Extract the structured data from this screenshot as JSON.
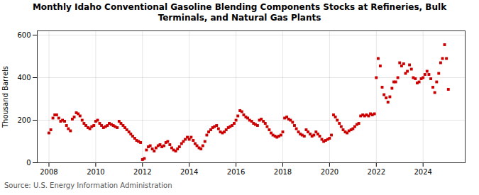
{
  "chart_data": {
    "type": "scatter",
    "title": "Monthly Idaho Conventional Gasoline Blending Components Stocks at Refineries, Bulk\nTerminals, and Natural Gas Plants",
    "ylabel": "Thousand Barrels",
    "source": "Source: U.S. Energy Information Administration",
    "color": "#cc0000",
    "marker": "square",
    "grid": true,
    "xlim": [
      2007.5,
      2025.8
    ],
    "ylim": [
      0,
      620
    ],
    "yticks": [
      0,
      200,
      400,
      600
    ],
    "xticks": [
      2008,
      2010,
      2012,
      2014,
      2016,
      2018,
      2020,
      2022,
      2024
    ],
    "x": [
      2008.0,
      2008.08,
      2008.17,
      2008.25,
      2008.33,
      2008.42,
      2008.5,
      2008.58,
      2008.67,
      2008.75,
      2008.83,
      2008.92,
      2009.0,
      2009.08,
      2009.17,
      2009.25,
      2009.33,
      2009.42,
      2009.5,
      2009.58,
      2009.67,
      2009.75,
      2009.83,
      2009.92,
      2010.0,
      2010.08,
      2010.17,
      2010.25,
      2010.33,
      2010.42,
      2010.5,
      2010.58,
      2010.67,
      2010.75,
      2010.83,
      2010.92,
      2011.0,
      2011.08,
      2011.17,
      2011.25,
      2011.33,
      2011.42,
      2011.5,
      2011.58,
      2011.67,
      2011.75,
      2011.83,
      2011.92,
      2012.0,
      2012.08,
      2012.17,
      2012.25,
      2012.33,
      2012.42,
      2012.5,
      2012.58,
      2012.67,
      2012.75,
      2012.83,
      2012.92,
      2013.0,
      2013.08,
      2013.17,
      2013.25,
      2013.33,
      2013.42,
      2013.5,
      2013.58,
      2013.67,
      2013.75,
      2013.83,
      2013.92,
      2014.0,
      2014.08,
      2014.17,
      2014.25,
      2014.33,
      2014.42,
      2014.5,
      2014.58,
      2014.67,
      2014.75,
      2014.83,
      2014.92,
      2015.0,
      2015.08,
      2015.17,
      2015.25,
      2015.33,
      2015.42,
      2015.5,
      2015.58,
      2015.67,
      2015.75,
      2015.83,
      2015.92,
      2016.0,
      2016.08,
      2016.17,
      2016.25,
      2016.33,
      2016.42,
      2016.5,
      2016.58,
      2016.67,
      2016.75,
      2016.83,
      2016.92,
      2017.0,
      2017.08,
      2017.17,
      2017.25,
      2017.33,
      2017.42,
      2017.5,
      2017.58,
      2017.67,
      2017.75,
      2017.83,
      2017.92,
      2018.0,
      2018.08,
      2018.17,
      2018.25,
      2018.33,
      2018.42,
      2018.5,
      2018.58,
      2018.67,
      2018.75,
      2018.83,
      2018.92,
      2019.0,
      2019.08,
      2019.17,
      2019.25,
      2019.33,
      2019.42,
      2019.5,
      2019.58,
      2019.67,
      2019.75,
      2019.83,
      2019.92,
      2020.0,
      2020.08,
      2020.17,
      2020.25,
      2020.33,
      2020.42,
      2020.5,
      2020.58,
      2020.67,
      2020.75,
      2020.83,
      2020.92,
      2021.0,
      2021.08,
      2021.17,
      2021.25,
      2021.33,
      2021.42,
      2021.5,
      2021.58,
      2021.67,
      2021.75,
      2021.83,
      2021.92,
      2022.0,
      2022.08,
      2022.17,
      2022.25,
      2022.33,
      2022.42,
      2022.5,
      2022.58,
      2022.67,
      2022.75,
      2022.83,
      2022.92,
      2023.0,
      2023.08,
      2023.17,
      2023.25,
      2023.33,
      2023.42,
      2023.5,
      2023.58,
      2023.67,
      2023.75,
      2023.83,
      2023.92,
      2024.0,
      2024.08,
      2024.17,
      2024.25,
      2024.33,
      2024.42,
      2024.5,
      2024.58,
      2024.67,
      2024.75,
      2024.83,
      2024.92,
      2025.0,
      2025.08
    ],
    "values": [
      140,
      155,
      210,
      225,
      225,
      210,
      195,
      200,
      195,
      175,
      160,
      150,
      205,
      215,
      235,
      230,
      220,
      200,
      185,
      175,
      165,
      160,
      170,
      175,
      195,
      200,
      185,
      175,
      165,
      170,
      175,
      185,
      180,
      175,
      170,
      165,
      195,
      185,
      175,
      165,
      155,
      145,
      135,
      125,
      115,
      105,
      100,
      95,
      15,
      20,
      60,
      75,
      80,
      65,
      55,
      70,
      80,
      85,
      75,
      80,
      95,
      100,
      85,
      70,
      60,
      55,
      65,
      75,
      90,
      100,
      110,
      120,
      110,
      120,
      105,
      90,
      80,
      70,
      65,
      80,
      100,
      130,
      145,
      155,
      165,
      170,
      175,
      160,
      145,
      140,
      145,
      155,
      165,
      170,
      175,
      185,
      200,
      220,
      245,
      240,
      225,
      215,
      210,
      200,
      195,
      185,
      180,
      175,
      200,
      205,
      195,
      185,
      170,
      155,
      140,
      130,
      125,
      120,
      125,
      130,
      145,
      210,
      215,
      205,
      200,
      190,
      175,
      160,
      145,
      135,
      130,
      125,
      155,
      145,
      135,
      125,
      130,
      145,
      135,
      125,
      110,
      100,
      105,
      110,
      115,
      130,
      225,
      215,
      200,
      185,
      170,
      155,
      145,
      140,
      150,
      155,
      160,
      170,
      180,
      185,
      220,
      225,
      220,
      225,
      220,
      230,
      225,
      230,
      400,
      490,
      455,
      355,
      320,
      305,
      285,
      310,
      350,
      380,
      380,
      400,
      470,
      455,
      465,
      420,
      430,
      460,
      440,
      400,
      395,
      375,
      380,
      395,
      400,
      415,
      430,
      415,
      395,
      355,
      330,
      380,
      420,
      470,
      490,
      555,
      490,
      345
    ]
  }
}
